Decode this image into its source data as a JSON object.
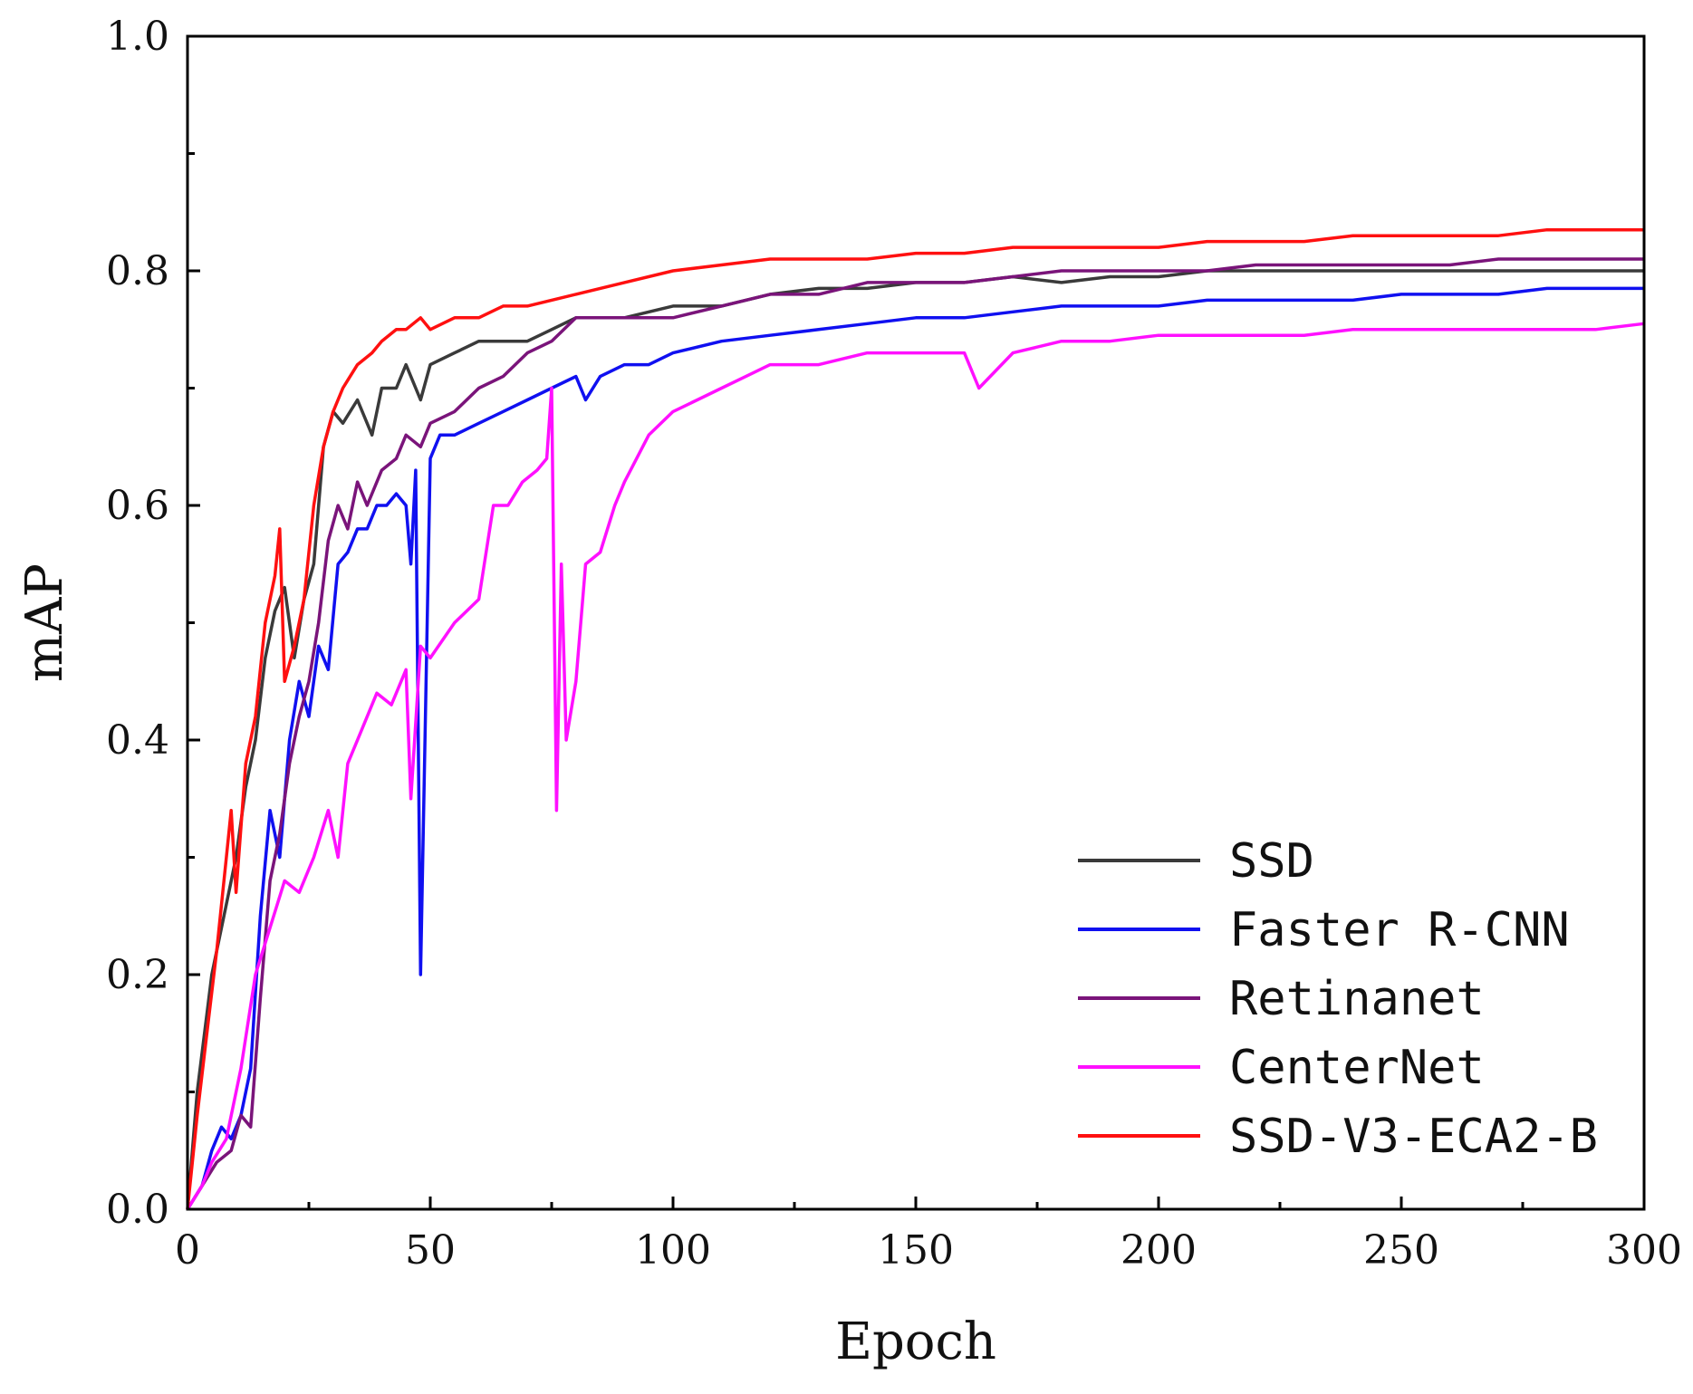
{
  "chart_data": {
    "type": "line",
    "title": "",
    "xlabel": "Epoch",
    "ylabel": "mAP",
    "xlim": [
      0,
      300
    ],
    "ylim": [
      0.0,
      1.0
    ],
    "xticks": [
      "0",
      "50",
      "100",
      "150",
      "200",
      "250",
      "300"
    ],
    "yticks": [
      "0.0",
      "0.2",
      "0.4",
      "0.6",
      "0.8",
      "1.0"
    ],
    "grid": false,
    "legend_position": "bottom-right",
    "series": [
      {
        "name": "SSD",
        "color": "#3a3a3a",
        "x": [
          0,
          2,
          5,
          8,
          10,
          12,
          14,
          16,
          18,
          20,
          22,
          24,
          26,
          28,
          30,
          32,
          35,
          38,
          40,
          43,
          45,
          48,
          50,
          55,
          60,
          65,
          70,
          75,
          80,
          90,
          100,
          110,
          120,
          130,
          140,
          150,
          160,
          170,
          180,
          190,
          200,
          210,
          220,
          230,
          240,
          250,
          260,
          270,
          280,
          290,
          300
        ],
        "y": [
          0.0,
          0.1,
          0.2,
          0.26,
          0.3,
          0.36,
          0.4,
          0.47,
          0.51,
          0.53,
          0.47,
          0.52,
          0.55,
          0.65,
          0.68,
          0.67,
          0.69,
          0.66,
          0.7,
          0.7,
          0.72,
          0.69,
          0.72,
          0.73,
          0.74,
          0.74,
          0.74,
          0.75,
          0.76,
          0.76,
          0.77,
          0.77,
          0.78,
          0.785,
          0.785,
          0.79,
          0.79,
          0.795,
          0.79,
          0.795,
          0.795,
          0.8,
          0.8,
          0.8,
          0.8,
          0.8,
          0.8,
          0.8,
          0.8,
          0.8,
          0.8
        ]
      },
      {
        "name": "Faster R-CNN",
        "color": "#1010f0",
        "x": [
          0,
          3,
          5,
          7,
          9,
          11,
          13,
          15,
          17,
          19,
          21,
          23,
          25,
          27,
          29,
          31,
          33,
          35,
          37,
          39,
          41,
          43,
          45,
          46,
          47,
          48,
          50,
          52,
          55,
          60,
          65,
          70,
          75,
          80,
          82,
          85,
          90,
          95,
          100,
          110,
          120,
          130,
          140,
          150,
          160,
          170,
          180,
          190,
          200,
          210,
          220,
          230,
          240,
          250,
          260,
          270,
          280,
          290,
          300
        ],
        "y": [
          0.0,
          0.02,
          0.05,
          0.07,
          0.06,
          0.08,
          0.12,
          0.25,
          0.34,
          0.3,
          0.4,
          0.45,
          0.42,
          0.48,
          0.46,
          0.55,
          0.56,
          0.58,
          0.58,
          0.6,
          0.6,
          0.61,
          0.6,
          0.55,
          0.63,
          0.2,
          0.64,
          0.66,
          0.66,
          0.67,
          0.68,
          0.69,
          0.7,
          0.71,
          0.69,
          0.71,
          0.72,
          0.72,
          0.73,
          0.74,
          0.745,
          0.75,
          0.755,
          0.76,
          0.76,
          0.765,
          0.77,
          0.77,
          0.77,
          0.775,
          0.775,
          0.775,
          0.775,
          0.78,
          0.78,
          0.78,
          0.785,
          0.785,
          0.785
        ]
      },
      {
        "name": "Retinanet",
        "color": "#7a147a",
        "x": [
          0,
          3,
          6,
          9,
          11,
          13,
          15,
          17,
          19,
          21,
          23,
          25,
          27,
          29,
          31,
          33,
          35,
          37,
          40,
          43,
          45,
          48,
          50,
          55,
          60,
          65,
          70,
          75,
          80,
          90,
          100,
          110,
          120,
          130,
          140,
          150,
          160,
          170,
          180,
          190,
          200,
          210,
          220,
          230,
          240,
          250,
          260,
          270,
          280,
          290,
          300
        ],
        "y": [
          0.0,
          0.02,
          0.04,
          0.05,
          0.08,
          0.07,
          0.18,
          0.28,
          0.32,
          0.38,
          0.42,
          0.45,
          0.5,
          0.57,
          0.6,
          0.58,
          0.62,
          0.6,
          0.63,
          0.64,
          0.66,
          0.65,
          0.67,
          0.68,
          0.7,
          0.71,
          0.73,
          0.74,
          0.76,
          0.76,
          0.76,
          0.77,
          0.78,
          0.78,
          0.79,
          0.79,
          0.79,
          0.795,
          0.8,
          0.8,
          0.8,
          0.8,
          0.805,
          0.805,
          0.805,
          0.805,
          0.805,
          0.81,
          0.81,
          0.81,
          0.81
        ]
      },
      {
        "name": "CenterNet",
        "color": "#ff10ff",
        "x": [
          0,
          3,
          5,
          8,
          11,
          14,
          17,
          20,
          23,
          26,
          29,
          31,
          33,
          36,
          39,
          42,
          45,
          46,
          48,
          50,
          55,
          60,
          63,
          66,
          69,
          72,
          74,
          75,
          76,
          77,
          78,
          80,
          82,
          85,
          88,
          90,
          95,
          100,
          105,
          110,
          115,
          120,
          130,
          140,
          150,
          160,
          163,
          170,
          180,
          190,
          200,
          210,
          220,
          230,
          240,
          250,
          260,
          270,
          280,
          290,
          300
        ],
        "y": [
          0.0,
          0.02,
          0.04,
          0.06,
          0.12,
          0.2,
          0.24,
          0.28,
          0.27,
          0.3,
          0.34,
          0.3,
          0.38,
          0.41,
          0.44,
          0.43,
          0.46,
          0.35,
          0.48,
          0.47,
          0.5,
          0.52,
          0.6,
          0.6,
          0.62,
          0.63,
          0.64,
          0.7,
          0.34,
          0.55,
          0.4,
          0.45,
          0.55,
          0.56,
          0.6,
          0.62,
          0.66,
          0.68,
          0.69,
          0.7,
          0.71,
          0.72,
          0.72,
          0.73,
          0.73,
          0.73,
          0.7,
          0.73,
          0.74,
          0.74,
          0.745,
          0.745,
          0.745,
          0.745,
          0.75,
          0.75,
          0.75,
          0.75,
          0.75,
          0.75,
          0.755
        ]
      },
      {
        "name": "SSD-V3-ECA2-B",
        "color": "#ff1010",
        "x": [
          0,
          2,
          4,
          6,
          8,
          9,
          10,
          12,
          14,
          16,
          18,
          19,
          20,
          22,
          24,
          26,
          28,
          30,
          32,
          35,
          38,
          40,
          43,
          45,
          48,
          50,
          55,
          60,
          65,
          70,
          75,
          80,
          90,
          100,
          110,
          120,
          130,
          140,
          150,
          160,
          170,
          180,
          190,
          200,
          210,
          220,
          230,
          240,
          250,
          260,
          270,
          280,
          290,
          300
        ],
        "y": [
          0.0,
          0.08,
          0.15,
          0.22,
          0.3,
          0.34,
          0.27,
          0.38,
          0.42,
          0.5,
          0.54,
          0.58,
          0.45,
          0.48,
          0.52,
          0.6,
          0.65,
          0.68,
          0.7,
          0.72,
          0.73,
          0.74,
          0.75,
          0.75,
          0.76,
          0.75,
          0.76,
          0.76,
          0.77,
          0.77,
          0.775,
          0.78,
          0.79,
          0.8,
          0.805,
          0.81,
          0.81,
          0.81,
          0.815,
          0.815,
          0.82,
          0.82,
          0.82,
          0.82,
          0.825,
          0.825,
          0.825,
          0.83,
          0.83,
          0.83,
          0.83,
          0.835,
          0.835,
          0.835
        ]
      }
    ]
  }
}
